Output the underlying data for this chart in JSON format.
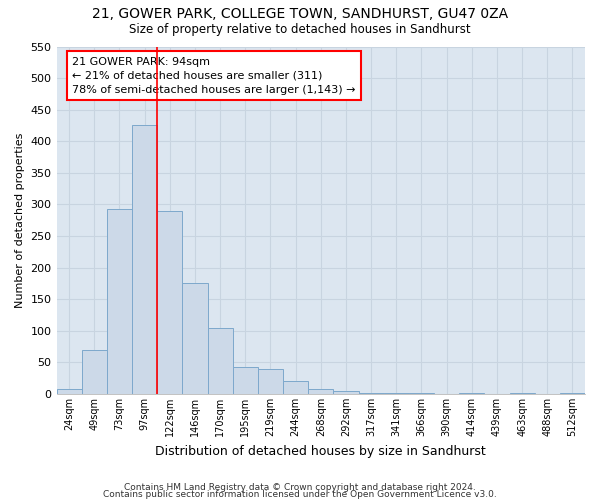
{
  "title1": "21, GOWER PARK, COLLEGE TOWN, SANDHURST, GU47 0ZA",
  "title2": "Size of property relative to detached houses in Sandhurst",
  "xlabel": "Distribution of detached houses by size in Sandhurst",
  "ylabel": "Number of detached properties",
  "bar_color": "#ccd9e8",
  "bar_edgecolor": "#7da8cc",
  "grid_color": "#c8d4e0",
  "background_color": "#dce6f0",
  "categories": [
    "24sqm",
    "49sqm",
    "73sqm",
    "97sqm",
    "122sqm",
    "146sqm",
    "170sqm",
    "195sqm",
    "219sqm",
    "244sqm",
    "268sqm",
    "292sqm",
    "317sqm",
    "341sqm",
    "366sqm",
    "390sqm",
    "414sqm",
    "439sqm",
    "463sqm",
    "488sqm",
    "512sqm"
  ],
  "values": [
    8,
    70,
    293,
    425,
    290,
    175,
    105,
    43,
    40,
    20,
    8,
    4,
    2,
    1,
    1,
    0,
    2,
    0,
    1,
    0,
    2
  ],
  "ylim": [
    0,
    550
  ],
  "yticks": [
    0,
    50,
    100,
    150,
    200,
    250,
    300,
    350,
    400,
    450,
    500,
    550
  ],
  "property_line_x": 3.5,
  "annotation_text": "21 GOWER PARK: 94sqm\n← 21% of detached houses are smaller (311)\n78% of semi-detached houses are larger (1,143) →",
  "annotation_box_color": "white",
  "annotation_box_edgecolor": "red",
  "vline_color": "red",
  "footnote1": "Contains HM Land Registry data © Crown copyright and database right 2024.",
  "footnote2": "Contains public sector information licensed under the Open Government Licence v3.0."
}
